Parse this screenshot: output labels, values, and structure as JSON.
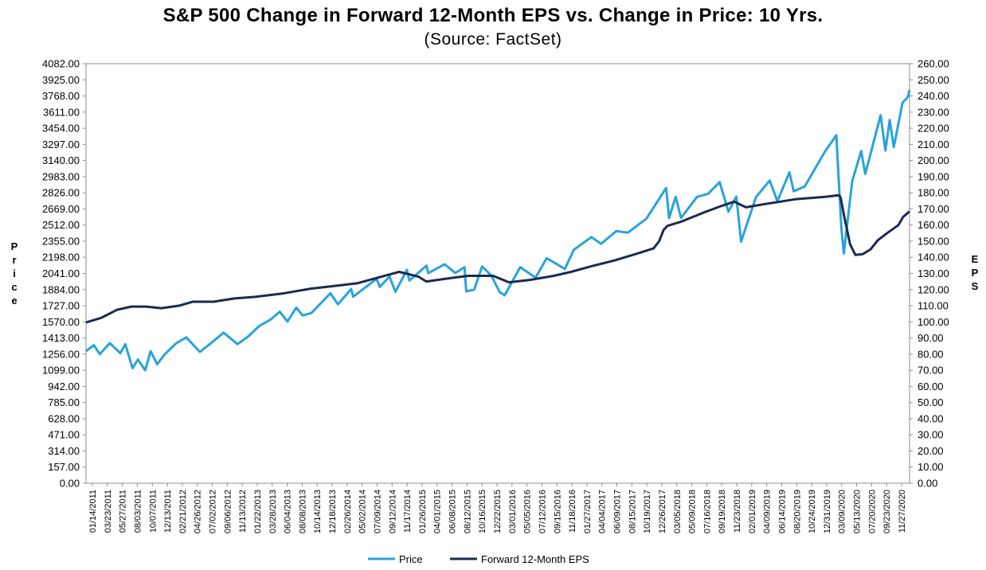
{
  "chart_data": {
    "type": "line",
    "title": "S&P 500 Change in Forward 12-Month EPS vs. Change in Price: 10 Yrs.",
    "subtitle": "(Source: FactSet)",
    "ylabel_left": "Price",
    "ylabel_right": "EPS",
    "ylim_left": [
      0,
      4082
    ],
    "ylim_right": [
      0,
      260
    ],
    "y_ticks_left": [
      "4082.00",
      "3925.00",
      "3768.00",
      "3611.00",
      "3454.00",
      "3297.00",
      "3140.00",
      "2983.00",
      "2826.00",
      "2669.00",
      "2512.00",
      "2355.00",
      "2198.00",
      "2041.00",
      "1884.00",
      "1727.00",
      "1570.00",
      "1413.00",
      "1256.00",
      "1099.00",
      "942.00",
      "785.00",
      "628.00",
      "471.00",
      "314.00",
      "157.00",
      "0.00"
    ],
    "y_ticks_right": [
      "260.00",
      "250.00",
      "240.00",
      "230.00",
      "220.00",
      "210.00",
      "200.00",
      "190.00",
      "180.00",
      "170.00",
      "160.00",
      "150.00",
      "140.00",
      "130.00",
      "120.00",
      "110.00",
      "100.00",
      "90.00",
      "80.00",
      "70.00",
      "60.00",
      "50.00",
      "40.00",
      "30.00",
      "20.00",
      "10.00",
      "0.00"
    ],
    "x_ticks": [
      "01/14/2011",
      "03/23/2011",
      "05/27/2011",
      "08/03/2011",
      "10/07/2011",
      "12/13/2011",
      "02/21/2012",
      "04/26/2012",
      "07/02/2012",
      "09/06/2012",
      "11/13/2012",
      "01/22/2013",
      "03/28/2013",
      "06/04/2013",
      "08/08/2013",
      "10/14/2013",
      "12/18/2013",
      "02/26/2014",
      "05/02/2014",
      "07/09/2014",
      "09/12/2014",
      "11/17/2014",
      "01/26/2015",
      "04/01/2015",
      "06/08/2015",
      "08/12/2015",
      "10/16/2015",
      "12/22/2015",
      "03/01/2016",
      "05/05/2016",
      "07/12/2016",
      "09/15/2016",
      "11/18/2016",
      "01/27/2017",
      "04/04/2017",
      "06/09/2017",
      "08/15/2017",
      "10/19/2017",
      "12/26/2017",
      "03/05/2018",
      "05/09/2018",
      "07/16/2018",
      "09/19/2018",
      "11/23/2018",
      "02/01/2019",
      "04/09/2019",
      "06/14/2019",
      "08/20/2019",
      "10/24/2019",
      "12/31/2019",
      "03/09/2020",
      "05/13/2020",
      "07/20/2020",
      "09/23/2020",
      "11/27/2020"
    ],
    "grid": false,
    "legend_position": "bottom",
    "series": [
      {
        "name": "Price",
        "axis": "left",
        "color": "#29a3da",
        "points": [
          [
            "2011-01-14",
            1285
          ],
          [
            "2011-02-18",
            1343
          ],
          [
            "2011-03-16",
            1256
          ],
          [
            "2011-04-29",
            1363
          ],
          [
            "2011-06-15",
            1265
          ],
          [
            "2011-07-07",
            1353
          ],
          [
            "2011-08-08",
            1119
          ],
          [
            "2011-09-01",
            1204
          ],
          [
            "2011-10-03",
            1099
          ],
          [
            "2011-10-27",
            1284
          ],
          [
            "2011-11-25",
            1158
          ],
          [
            "2011-12-30",
            1257
          ],
          [
            "2012-02-17",
            1361
          ],
          [
            "2012-04-02",
            1419
          ],
          [
            "2012-06-01",
            1278
          ],
          [
            "2012-07-20",
            1362
          ],
          [
            "2012-09-14",
            1465
          ],
          [
            "2012-11-15",
            1353
          ],
          [
            "2012-12-31",
            1426
          ],
          [
            "2013-02-19",
            1530
          ],
          [
            "2013-04-11",
            1593
          ],
          [
            "2013-05-21",
            1669
          ],
          [
            "2013-06-24",
            1573
          ],
          [
            "2013-08-02",
            1709
          ],
          [
            "2013-08-30",
            1633
          ],
          [
            "2013-10-08",
            1656
          ],
          [
            "2013-12-31",
            1848
          ],
          [
            "2014-02-03",
            1741
          ],
          [
            "2014-04-02",
            1890
          ],
          [
            "2014-04-11",
            1815
          ],
          [
            "2014-07-24",
            1988
          ],
          [
            "2014-08-07",
            1910
          ],
          [
            "2014-09-19",
            2011
          ],
          [
            "2014-10-15",
            1862
          ],
          [
            "2014-12-05",
            2075
          ],
          [
            "2014-12-16",
            1972
          ],
          [
            "2015-03-02",
            2117
          ],
          [
            "2015-03-10",
            2044
          ],
          [
            "2015-05-21",
            2131
          ],
          [
            "2015-07-08",
            2046
          ],
          [
            "2015-08-17",
            2102
          ],
          [
            "2015-08-25",
            1867
          ],
          [
            "2015-09-29",
            1884
          ],
          [
            "2015-11-03",
            2109
          ],
          [
            "2015-12-14",
            2021
          ],
          [
            "2016-01-20",
            1859
          ],
          [
            "2016-02-11",
            1829
          ],
          [
            "2016-04-20",
            2102
          ],
          [
            "2016-06-27",
            2000
          ],
          [
            "2016-08-15",
            2190
          ],
          [
            "2016-11-04",
            2085
          ],
          [
            "2016-12-13",
            2271
          ],
          [
            "2017-03-01",
            2395
          ],
          [
            "2017-04-13",
            2329
          ],
          [
            "2017-06-19",
            2453
          ],
          [
            "2017-08-10",
            2438
          ],
          [
            "2017-10-31",
            2575
          ],
          [
            "2018-01-26",
            2873
          ],
          [
            "2018-02-08",
            2581
          ],
          [
            "2018-03-09",
            2786
          ],
          [
            "2018-04-02",
            2582
          ],
          [
            "2018-06-12",
            2786
          ],
          [
            "2018-07-31",
            2816
          ],
          [
            "2018-09-20",
            2930
          ],
          [
            "2018-10-29",
            2641
          ],
          [
            "2018-12-03",
            2790
          ],
          [
            "2018-12-24",
            2351
          ],
          [
            "2019-02-28",
            2784
          ],
          [
            "2019-04-30",
            2945
          ],
          [
            "2019-06-03",
            2744
          ],
          [
            "2019-07-26",
            3025
          ],
          [
            "2019-08-14",
            2840
          ],
          [
            "2019-10-02",
            2887
          ],
          [
            "2019-12-31",
            3230
          ],
          [
            "2020-02-19",
            3386
          ],
          [
            "2020-03-12",
            2480
          ],
          [
            "2020-03-23",
            2237
          ],
          [
            "2020-04-29",
            2939
          ],
          [
            "2020-06-08",
            3232
          ],
          [
            "2020-06-26",
            3009
          ],
          [
            "2020-09-02",
            3580
          ],
          [
            "2020-09-23",
            3237
          ],
          [
            "2020-10-12",
            3534
          ],
          [
            "2020-10-30",
            3270
          ],
          [
            "2020-12-08",
            3702
          ],
          [
            "2020-12-31",
            3756
          ],
          [
            "2021-01-08",
            3824
          ]
        ]
      },
      {
        "name": "Forward 12-Month EPS",
        "axis": "right",
        "color": "#1c2a4f",
        "points": [
          [
            "2011-01-14",
            99.6
          ],
          [
            "2011-03-23",
            102.5
          ],
          [
            "2011-06-01",
            107.5
          ],
          [
            "2011-08-03",
            109.5
          ],
          [
            "2011-10-07",
            109.5
          ],
          [
            "2011-12-13",
            108.5
          ],
          [
            "2012-03-01",
            110
          ],
          [
            "2012-05-01",
            112.5
          ],
          [
            "2012-08-01",
            112.5
          ],
          [
            "2012-11-01",
            114.5
          ],
          [
            "2013-02-01",
            115.5
          ],
          [
            "2013-06-01",
            117.5
          ],
          [
            "2013-10-01",
            120.5
          ],
          [
            "2014-02-01",
            122.5
          ],
          [
            "2014-05-01",
            124
          ],
          [
            "2014-08-01",
            127.5
          ],
          [
            "2014-11-01",
            131
          ],
          [
            "2015-01-26",
            128
          ],
          [
            "2015-03-01",
            125
          ],
          [
            "2015-06-08",
            127
          ],
          [
            "2015-09-01",
            128.5
          ],
          [
            "2015-12-22",
            128.5
          ],
          [
            "2016-03-01",
            124.5
          ],
          [
            "2016-06-01",
            126
          ],
          [
            "2016-09-15",
            128.5
          ],
          [
            "2016-12-01",
            131
          ],
          [
            "2017-03-01",
            134.5
          ],
          [
            "2017-06-09",
            138
          ],
          [
            "2017-09-01",
            141.5
          ],
          [
            "2017-12-01",
            145.5
          ],
          [
            "2017-12-26",
            150
          ],
          [
            "2018-01-15",
            157
          ],
          [
            "2018-02-01",
            159.5
          ],
          [
            "2018-04-01",
            162
          ],
          [
            "2018-07-16",
            168
          ],
          [
            "2018-10-01",
            172
          ],
          [
            "2018-11-23",
            174.5
          ],
          [
            "2019-01-15",
            171
          ],
          [
            "2019-04-09",
            173
          ],
          [
            "2019-08-20",
            176
          ],
          [
            "2019-12-31",
            177.5
          ],
          [
            "2020-03-01",
            178.5
          ],
          [
            "2020-03-09",
            177
          ],
          [
            "2020-03-25",
            165
          ],
          [
            "2020-04-20",
            148
          ],
          [
            "2020-05-13",
            141.5
          ],
          [
            "2020-06-15",
            142
          ],
          [
            "2020-07-20",
            145
          ],
          [
            "2020-08-20",
            150.5
          ],
          [
            "2020-10-01",
            155
          ],
          [
            "2020-11-20",
            160
          ],
          [
            "2020-12-10",
            165
          ],
          [
            "2021-01-08",
            168.5
          ]
        ]
      }
    ]
  }
}
